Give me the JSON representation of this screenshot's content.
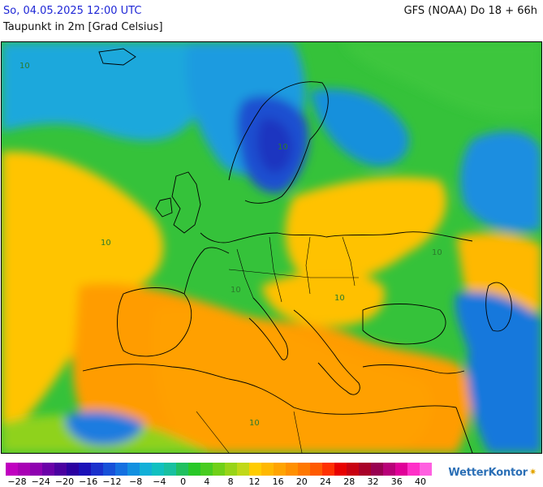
{
  "header": {
    "datetime": "So, 04.05.2025 12:00 UTC",
    "model": "GFS (NOAA) Do 18 + 66h",
    "parameter": "Taupunkt in 2m [Grad Celsius]"
  },
  "map": {
    "region": "Europe",
    "contour_labels": [
      {
        "text": "10",
        "region": "north-atlantic"
      },
      {
        "text": "10",
        "region": "scandinavia"
      },
      {
        "text": "10",
        "region": "iberia"
      },
      {
        "text": "10",
        "region": "central-europe"
      },
      {
        "text": "10",
        "region": "balkans"
      },
      {
        "text": "10",
        "region": "black-sea"
      },
      {
        "text": "10",
        "region": "north-africa"
      }
    ]
  },
  "legend": {
    "ticks": [
      "−28",
      "−24",
      "−20",
      "−16",
      "−12",
      "−8",
      "−4",
      "0",
      "4",
      "8",
      "12",
      "16",
      "20",
      "24",
      "28",
      "32",
      "36",
      "40"
    ],
    "colors": [
      "#c000c0",
      "#a800b4",
      "#8e00b0",
      "#6a00a8",
      "#4a00a0",
      "#2a00a0",
      "#1a10b8",
      "#1a30cc",
      "#1650d8",
      "#1470e0",
      "#1290e0",
      "#12b0d8",
      "#10c0c0",
      "#18c0a0",
      "#20c060",
      "#28c828",
      "#48cc20",
      "#70d018",
      "#98d418",
      "#c0d818",
      "#ffcc00",
      "#ffb800",
      "#ffa400",
      "#ff9000",
      "#ff7800",
      "#ff5a00",
      "#ff3000",
      "#e80000",
      "#c80010",
      "#a80028",
      "#980050",
      "#b80078",
      "#e00098",
      "#ff30c8",
      "#ff60e0"
    ],
    "colors_meaning": "dew point color scale from -28 to 40 degrees"
  },
  "brand": {
    "name": "WetterKontor"
  }
}
